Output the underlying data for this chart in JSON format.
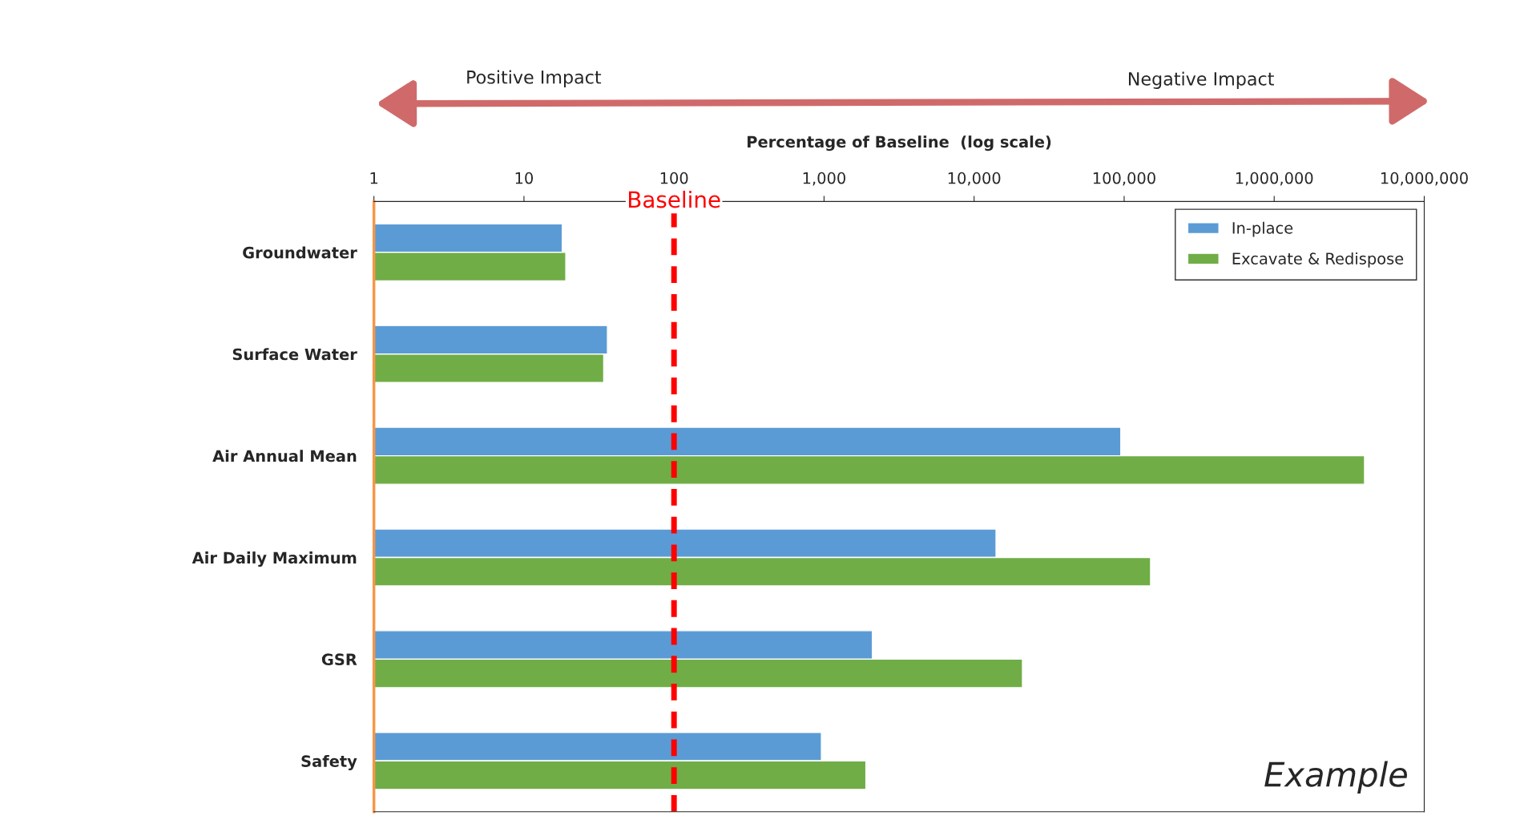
{
  "chart_data": {
    "type": "bar",
    "orientation": "horizontal",
    "log": "x",
    "xlabel": "Percentage of Baseline  (log scale)",
    "categories": [
      "Groundwater",
      "Surface Water",
      "Air Annual Mean",
      "Air Daily Maximum",
      "GSR",
      "Safety"
    ],
    "series": [
      {
        "name": "In-place",
        "color": "#5b9bd5",
        "values": [
          18,
          36,
          95000,
          14000,
          2100,
          960
        ]
      },
      {
        "name": "Excavate & Redispose",
        "color": "#70ad47",
        "values": [
          19,
          34,
          4000000,
          150000,
          21000,
          1900
        ]
      }
    ],
    "xlim": [
      1,
      10000000
    ],
    "xticks": [
      1,
      10,
      100,
      {
        "value": 1000,
        "label": "1,000"
      },
      {
        "value": 10000,
        "label": "10,000"
      },
      {
        "value": 100000,
        "label": "100,000"
      },
      {
        "value": 1000000,
        "label": "1,000,000"
      },
      {
        "value": 10000000,
        "label": "10,000,000"
      }
    ],
    "ref_lines": [
      {
        "axis": "x",
        "value": 100,
        "label": "Baseline",
        "color": "#ff0000",
        "line_style": "dashed"
      }
    ],
    "annotations": [
      "Positive Impact",
      "Negative Impact",
      "Example"
    ],
    "legend": "top right",
    "grid": false
  }
}
